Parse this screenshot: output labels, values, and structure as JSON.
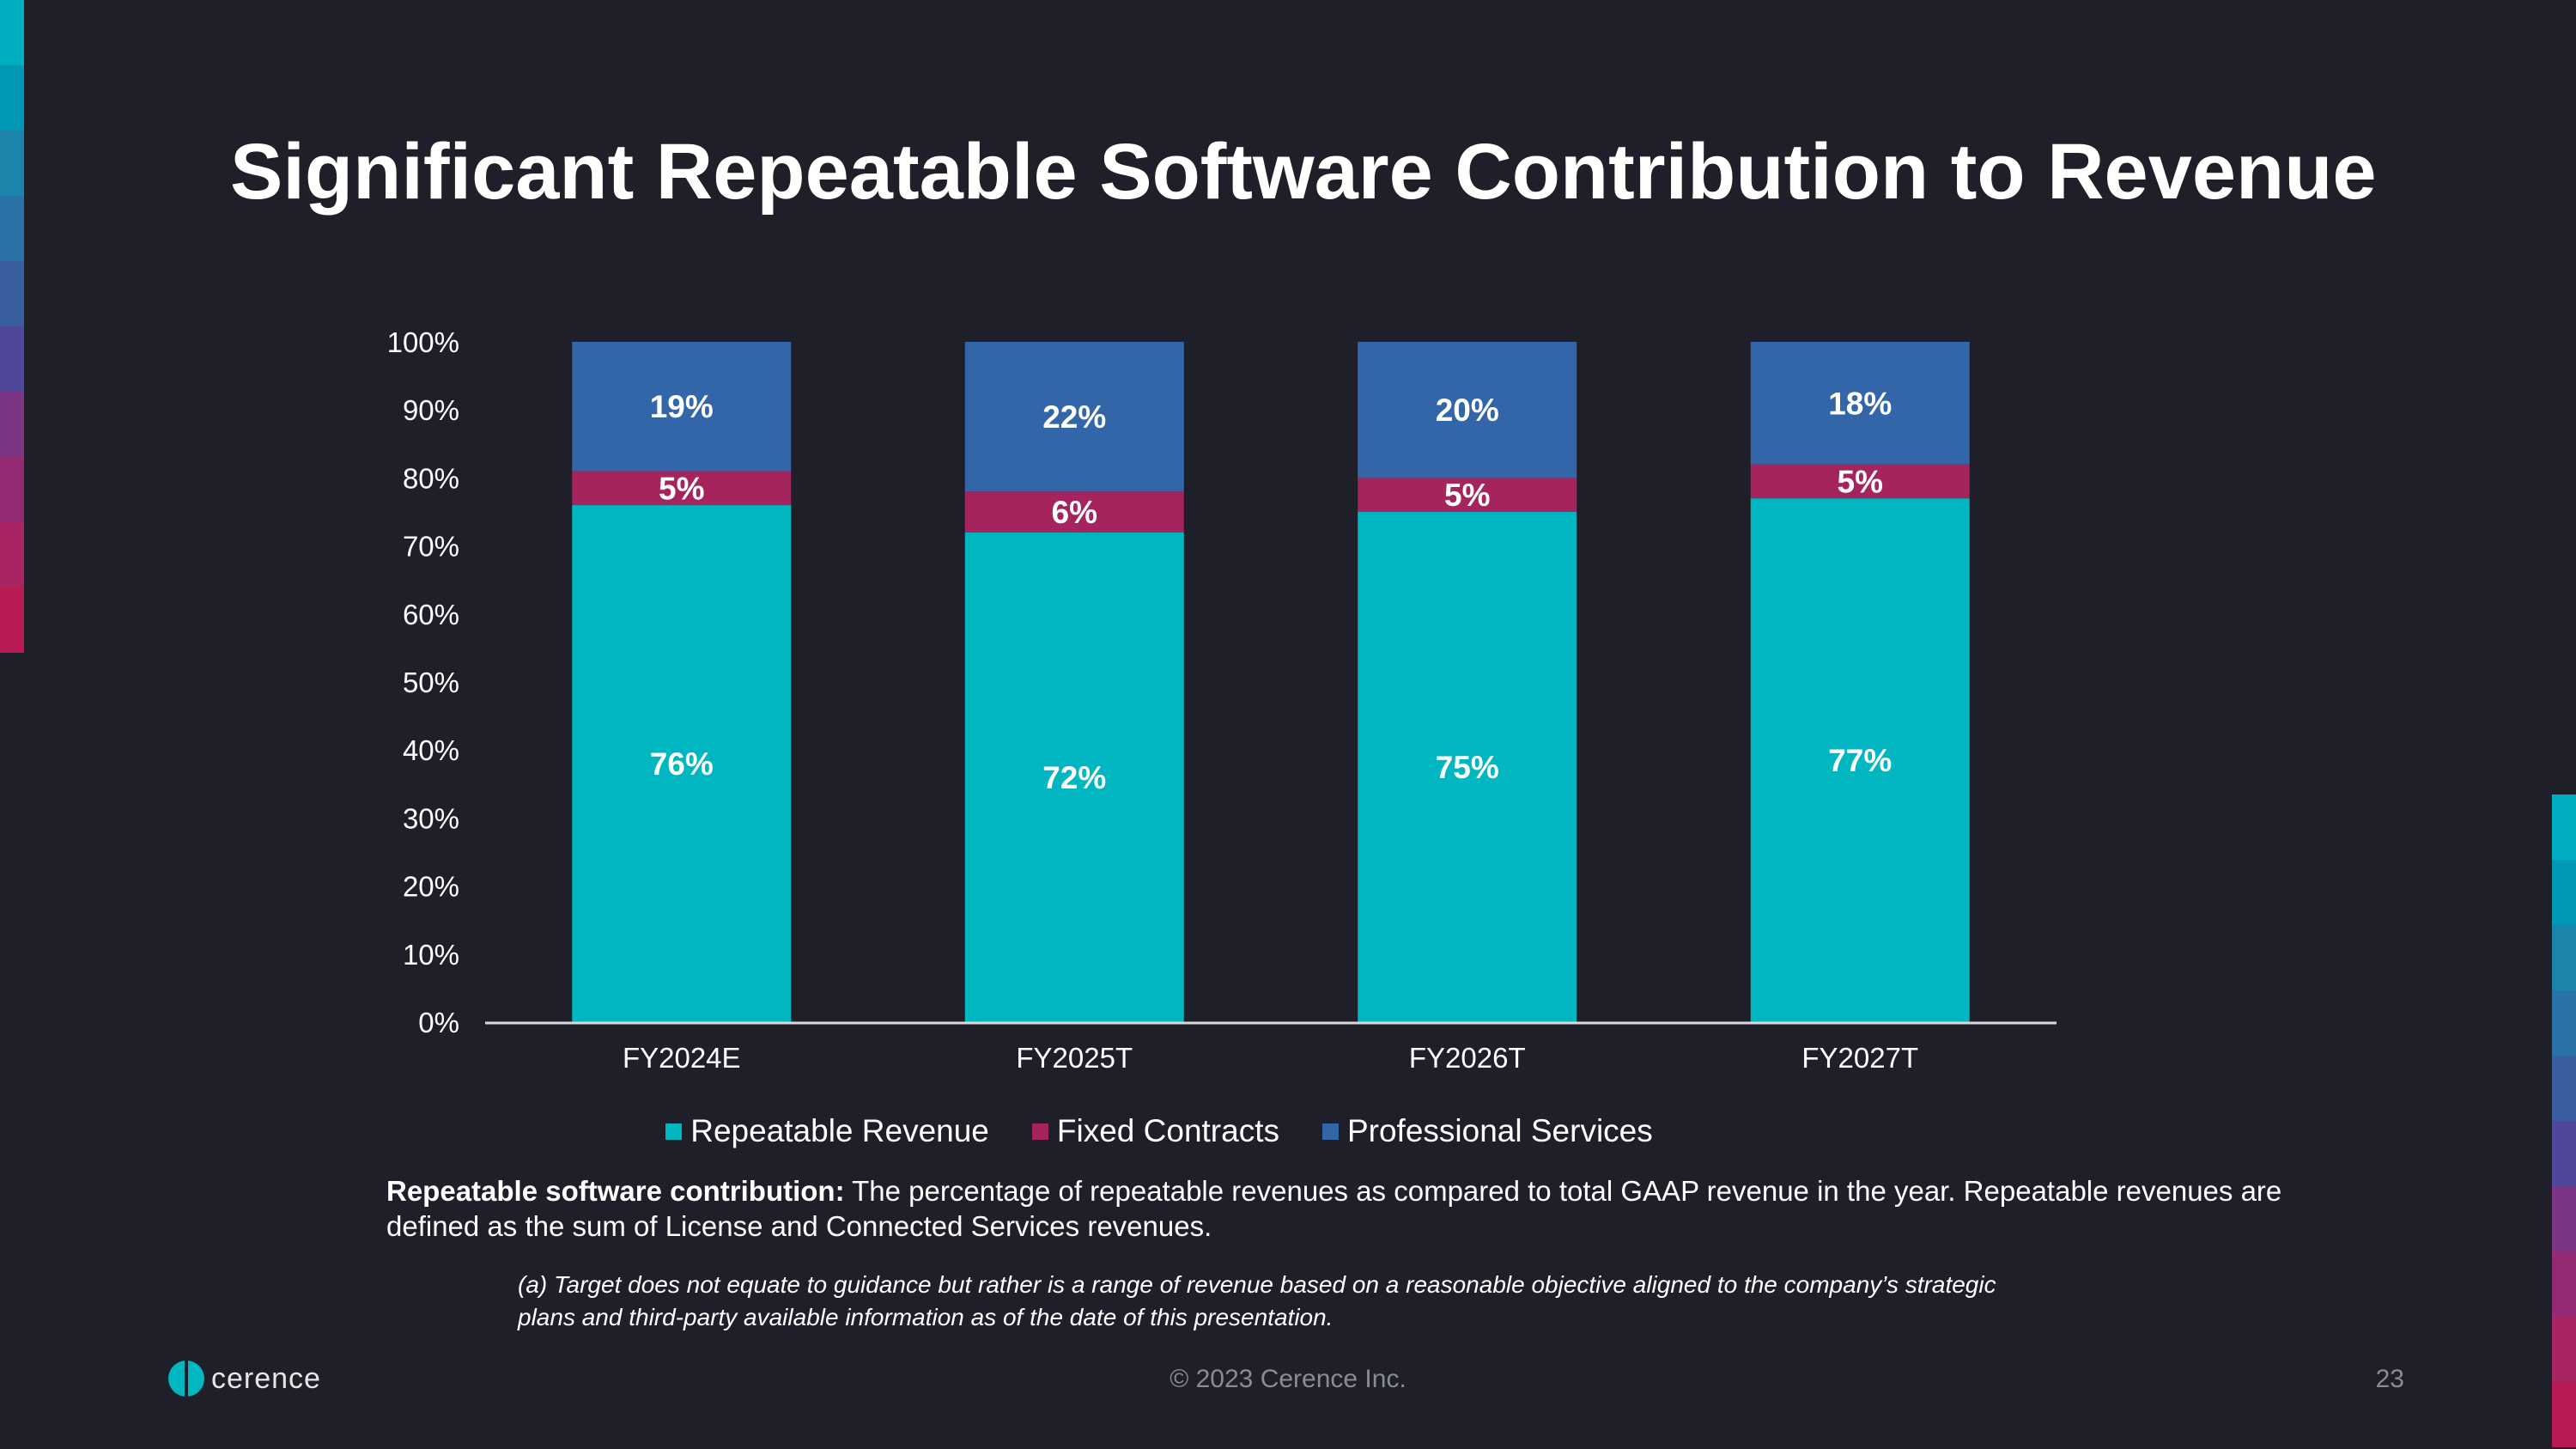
{
  "slide": {
    "title": "Significant Repeatable Software Contribution to Revenue",
    "definition_bold": "Repeatable software contribution:",
    "definition_text": " The percentage of repeatable revenues as compared to total GAAP revenue in the year. Repeatable revenues are defined as the sum of License and Connected Services revenues.",
    "footnote": "(a) Target does not equate to guidance but rather is a range of revenue based on a reasonable objective aligned to the company’s strategic plans and third-party available information as of the date of this presentation.",
    "copyright": "© 2023 Cerence Inc.",
    "page_number": "23",
    "logo_text": "cerence"
  },
  "colors": {
    "background": "#1e1f29",
    "repeatable": "#00b6c0",
    "fixed": "#a6245e",
    "professional": "#3366a8",
    "left_strip": [
      "#00aec2",
      "#0098b4",
      "#1d84ab",
      "#2b72a7",
      "#3a5fa1",
      "#51479a",
      "#7a3585",
      "#942a74",
      "#a92463",
      "#b91a54"
    ],
    "right_strip": [
      "#00aec2",
      "#0098b4",
      "#1d84ab",
      "#2b72a7",
      "#3a5fa1",
      "#51479a",
      "#7a3585",
      "#942a74",
      "#a92463",
      "#b91a54"
    ]
  },
  "chart_data": {
    "type": "bar",
    "stacked": true,
    "categories": [
      "FY2024E",
      "FY2025T",
      "FY2026T",
      "FY2027T"
    ],
    "series": [
      {
        "name": "Repeatable Revenue",
        "values": [
          76,
          72,
          75,
          77
        ],
        "labels": [
          "76%",
          "72%",
          "75%",
          "77%"
        ]
      },
      {
        "name": "Fixed Contracts",
        "values": [
          5,
          6,
          5,
          5
        ],
        "labels": [
          "5%",
          "6%",
          "5%",
          "5%"
        ]
      },
      {
        "name": "Professional Services",
        "values": [
          19,
          22,
          20,
          18
        ],
        "labels": [
          "19%",
          "22%",
          "20%",
          "18%"
        ]
      }
    ],
    "yticks": [
      "0%",
      "10%",
      "20%",
      "30%",
      "40%",
      "50%",
      "60%",
      "70%",
      "80%",
      "90%",
      "100%"
    ],
    "ylim": [
      0,
      100
    ],
    "grid": false,
    "legend_position": "bottom"
  }
}
